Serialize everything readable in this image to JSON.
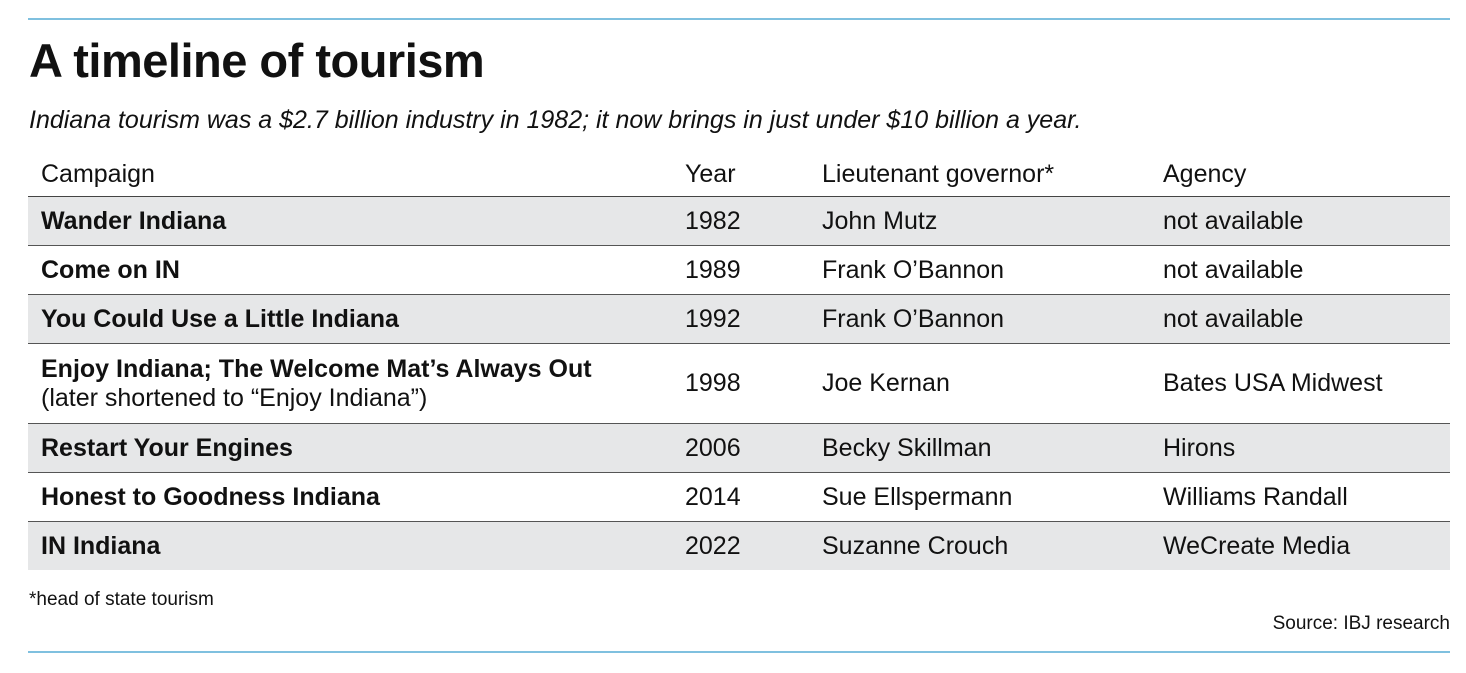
{
  "title": "A timeline of tourism",
  "subtitle": "Indiana tourism was a $2.7 billion industry in 1982; it now brings in just under $10 billion a year.",
  "columns": [
    "Campaign",
    "Year",
    "Lieutenant governor*",
    "Agency"
  ],
  "rows": [
    {
      "campaign": "Wander Indiana",
      "note": "",
      "year": "1982",
      "lt_governor": "John Mutz",
      "agency": "not available"
    },
    {
      "campaign": "Come on IN",
      "note": "",
      "year": "1989",
      "lt_governor": "Frank O’Bannon",
      "agency": "not available"
    },
    {
      "campaign": "You Could Use a Little Indiana",
      "note": "",
      "year": "1992",
      "lt_governor": "Frank O’Bannon",
      "agency": "not available"
    },
    {
      "campaign": "Enjoy Indiana; The Welcome Mat’s Always Out",
      "note": "(later shortened to “Enjoy Indiana”)",
      "year": "1998",
      "lt_governor": "Joe Kernan",
      "agency": "Bates USA Midwest"
    },
    {
      "campaign": "Restart Your Engines",
      "note": "",
      "year": "2006",
      "lt_governor": "Becky Skillman",
      "agency": "Hirons"
    },
    {
      "campaign": "Honest to Goodness Indiana",
      "note": "",
      "year": "2014",
      "lt_governor": "Sue Ellspermann",
      "agency": "Williams Randall"
    },
    {
      "campaign": "IN Indiana",
      "note": "",
      "year": "2022",
      "lt_governor": "Suzanne Crouch",
      "agency": "WeCreate Media"
    }
  ],
  "footnote": "*head of state tourism",
  "source": "Source: IBJ research",
  "colors": {
    "rule": "#7fc0df",
    "row_shade": "#e6e7e8",
    "text": "#111111"
  }
}
